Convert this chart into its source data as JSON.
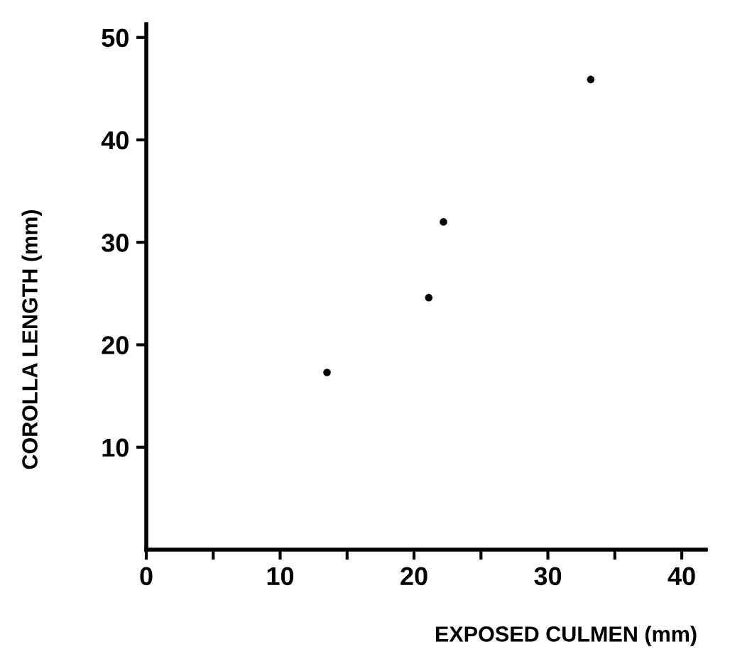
{
  "chart_data": {
    "type": "scatter",
    "xlabel": "EXPOSED CULMEN (mm)",
    "ylabel": "COROLLA LENGTH (mm)",
    "x": [
      13.5,
      21.1,
      22.2,
      33.2
    ],
    "values": [
      17.3,
      24.6,
      32.0,
      45.9
    ],
    "color": "#000000",
    "marker": "circle",
    "xlim": [
      0,
      41.8
    ],
    "ylim": [
      0,
      51.3
    ],
    "xticks": [
      0,
      {
        "value": 5,
        "label": null
      },
      10,
      {
        "value": 15,
        "label": null
      },
      20,
      {
        "value": 25,
        "label": null
      },
      30,
      {
        "value": 35,
        "label": null
      },
      40
    ],
    "yticks": [
      10,
      20,
      30,
      40,
      50
    ],
    "grid": false
  }
}
